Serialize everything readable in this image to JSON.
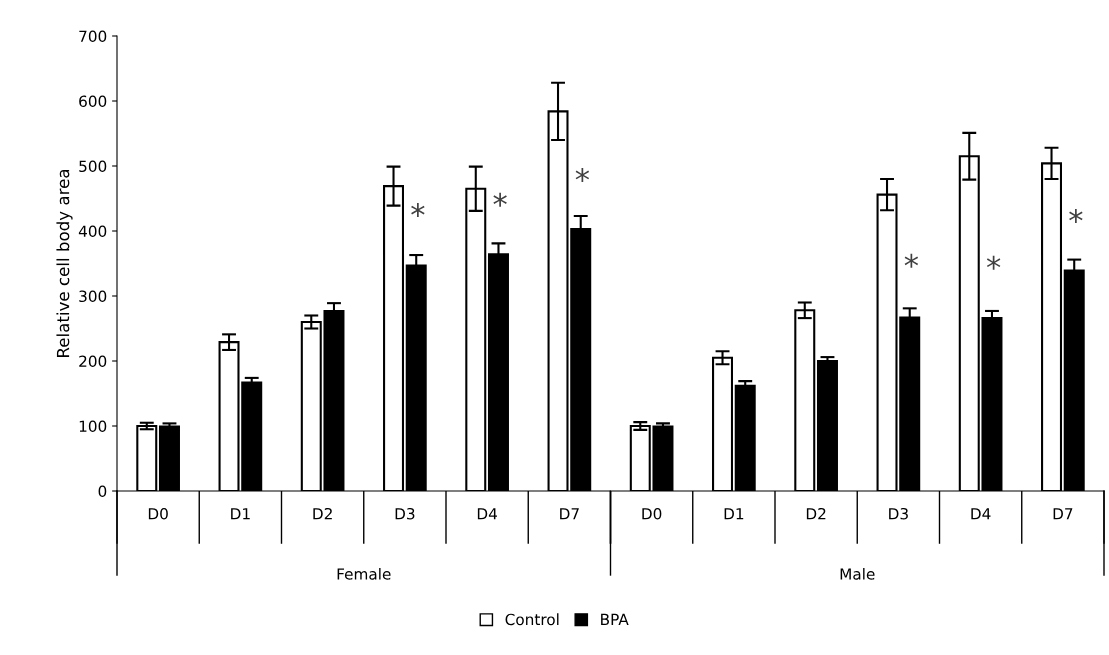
{
  "chart_data": [
    {
      "type": "bar",
      "ylabel": "Relative cell body area",
      "xlabel": "Female",
      "categories": [
        "D0",
        "D1",
        "D2",
        "D3",
        "D4",
        "D7"
      ],
      "ylim": [
        0,
        700
      ],
      "yticks": [
        0,
        100,
        200,
        300,
        400,
        500,
        600,
        700
      ],
      "legend": "bottom",
      "series": [
        {
          "name": "Control",
          "color": "#ffffff",
          "values": [
            100,
            229,
            260,
            469,
            465,
            584
          ],
          "errors": [
            5,
            12,
            10,
            30,
            34,
            44
          ]
        },
        {
          "name": "BPA",
          "color": "#000000",
          "values": [
            99,
            167,
            277,
            347,
            364,
            403
          ],
          "errors": [
            5,
            7,
            12,
            16,
            17,
            20
          ]
        }
      ],
      "annotations": [
        {
          "text": "*",
          "x": "D3",
          "y": 421
        },
        {
          "text": "*",
          "x": "D4",
          "y": 437
        },
        {
          "text": "*",
          "x": "D7",
          "y": 475
        }
      ]
    },
    {
      "type": "bar",
      "xlabel": "Male",
      "categories": [
        "D0",
        "D1",
        "D2",
        "D3",
        "D4",
        "D7"
      ],
      "ylim": [
        0,
        700
      ],
      "yticks": [
        0,
        100,
        200,
        300,
        400,
        500,
        600,
        700
      ],
      "tick_labels": "x",
      "series": [
        {
          "color": "#ffffff",
          "values": [
            100,
            205,
            278,
            456,
            515,
            504
          ],
          "errors": [
            6,
            10,
            12,
            24,
            36,
            24
          ]
        },
        {
          "color": "#000000",
          "values": [
            99,
            162,
            200,
            267,
            266,
            339
          ],
          "errors": [
            5,
            7,
            6,
            14,
            11,
            17
          ]
        }
      ],
      "annotations": [
        {
          "text": "*",
          "x": "D3",
          "y": 343
        },
        {
          "text": "*",
          "x": "D4",
          "y": 340
        },
        {
          "text": "*",
          "x": "D7",
          "y": 412
        }
      ]
    }
  ]
}
